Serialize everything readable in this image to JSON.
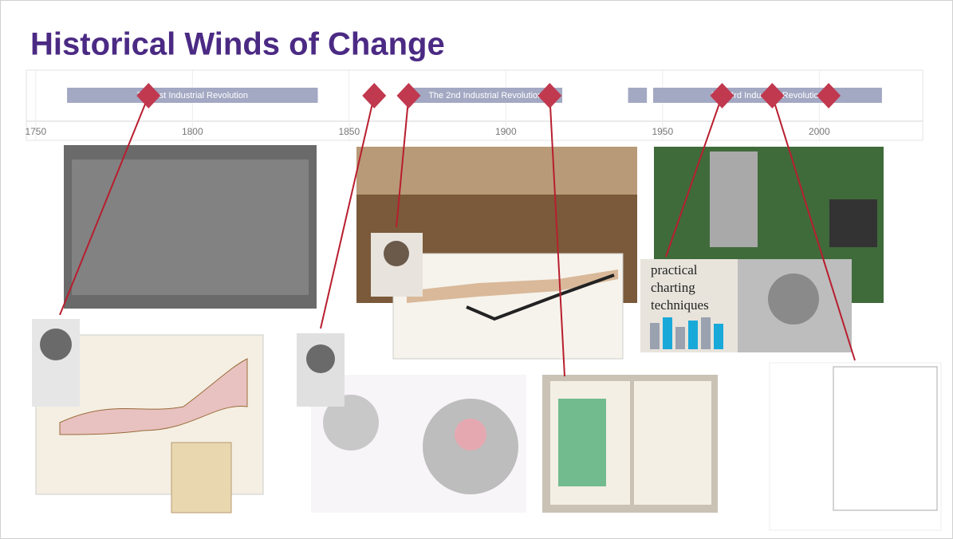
{
  "chart_data": {
    "type": "timeline",
    "title": "Historical Winds of Change",
    "xlim": [
      1747,
      2033
    ],
    "xticks": [
      1750,
      1800,
      1850,
      1900,
      1950,
      2000
    ],
    "grid": true,
    "periods": [
      {
        "label": "The 1st Industrial Revolution",
        "start": 1760,
        "end": 1840
      },
      {
        "label": "The 2nd Industrial Revolution",
        "start": 1869,
        "end": 1918
      },
      {
        "label": null,
        "start": 1939,
        "end": 1945
      },
      {
        "label": "The 3rd Industrial Revolution",
        "start": 1947,
        "end": 2020
      }
    ],
    "period_color": "#a3a8c3",
    "events": [
      1786,
      1858,
      1869,
      1914,
      1969,
      1985,
      2003
    ],
    "event_color": "#c0394f",
    "book_title": "practical charting techniques"
  }
}
